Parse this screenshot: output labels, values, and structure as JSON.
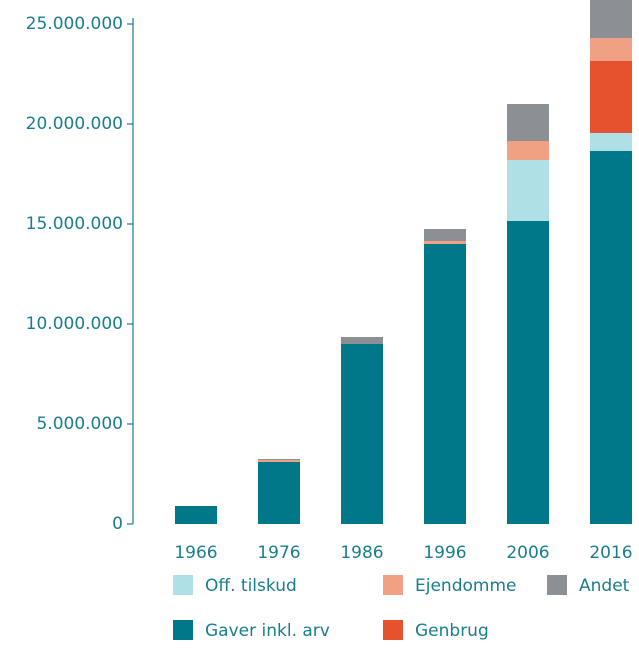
{
  "chart_data": {
    "type": "stacked_bar",
    "categories": [
      "1966",
      "1976",
      "1986",
      "1996",
      "2006",
      "2016"
    ],
    "series": [
      {
        "name": "Off. tilskud",
        "color": "#aee0e5",
        "values": [
          0,
          0,
          0,
          0,
          3050000,
          900000
        ]
      },
      {
        "name": "Ejendomme",
        "color": "#f0a184",
        "values": [
          0,
          100000,
          0,
          150000,
          950000,
          1150000
        ]
      },
      {
        "name": "Andet",
        "color": "#8c8f94",
        "values": [
          0,
          50000,
          350000,
          600000,
          1850000,
          1900000
        ]
      },
      {
        "name": "Gaver inkl. arv",
        "color": "#00788a",
        "values": [
          900000,
          3100000,
          9000000,
          14000000,
          15150000,
          18650000
        ]
      },
      {
        "name": "Genbrug",
        "color": "#e5532e",
        "values": [
          0,
          0,
          0,
          0,
          0,
          3600000
        ]
      }
    ],
    "ylim": [
      0,
      26200000
    ],
    "yticks": [
      {
        "value": 0,
        "label": "0"
      },
      {
        "value": 5000000,
        "label": "5.000.000"
      },
      {
        "value": 10000000,
        "label": "10.000.000"
      },
      {
        "value": 15000000,
        "label": "15.000.000"
      },
      {
        "value": 20000000,
        "label": "20.000.000"
      },
      {
        "value": 25000000,
        "label": "25.000.000"
      }
    ]
  }
}
